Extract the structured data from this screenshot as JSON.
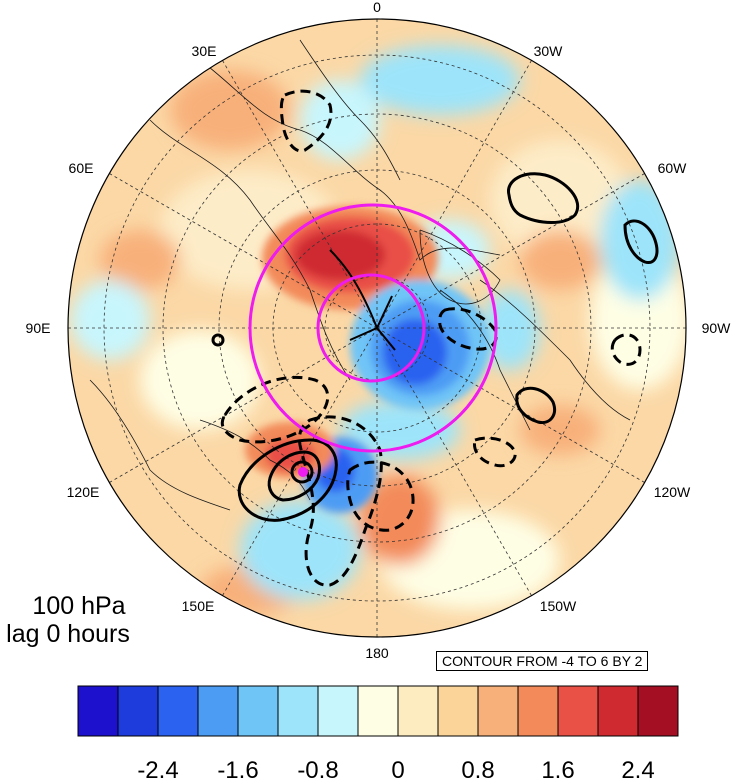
{
  "projection": "north-polar-stereographic",
  "level_text": "100 hPa",
  "lag_text": "lag 0 hours",
  "contour_note": "CONTOUR FROM -4 TO 6 BY 2",
  "longitude_labels": [
    "0",
    "30W",
    "60W",
    "90W",
    "120W",
    "150W",
    "180",
    "150E",
    "120E",
    "90E",
    "60E",
    "30E"
  ],
  "colorbar": {
    "colors": [
      "#1e11cd",
      "#1e3cdb",
      "#2c62f0",
      "#4d9cf4",
      "#70c5f7",
      "#9de4fa",
      "#c8f6fd",
      "#fefee5",
      "#fdecc0",
      "#fbd49a",
      "#f8b07a",
      "#f38a5a",
      "#e95046",
      "#cf2a30",
      "#a50f24"
    ],
    "tick_labels": [
      "-2.4",
      "-1.6",
      "-0.8",
      "0",
      "0.8",
      "1.6",
      "2.4"
    ]
  },
  "colors": {
    "circle_overlay": "#ee1cee",
    "marker": "#ee1cee",
    "contour": "#000000",
    "coastline": "#1a1a1a"
  }
}
